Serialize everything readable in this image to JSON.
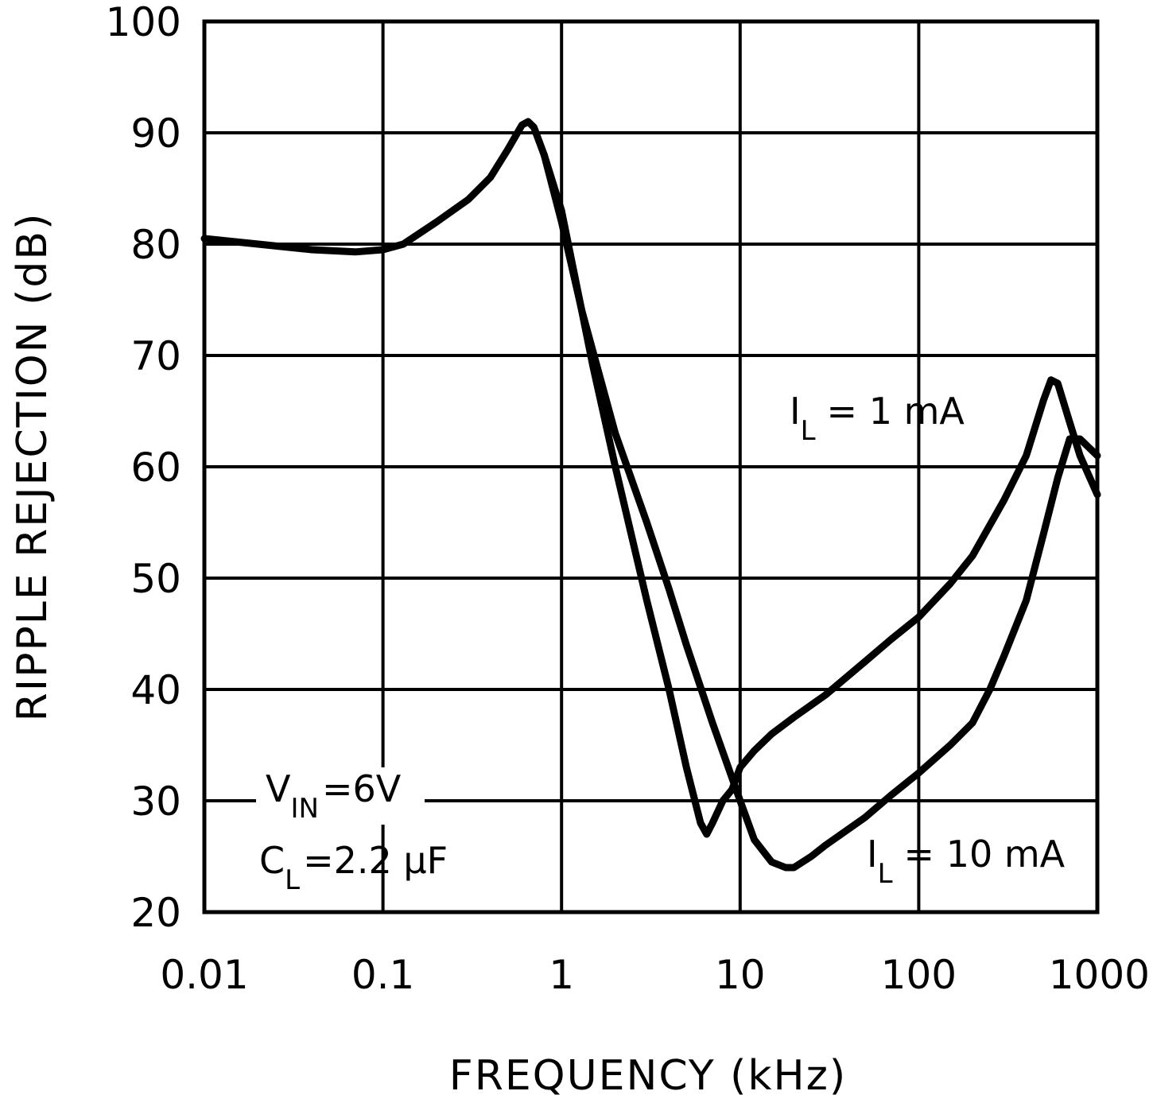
{
  "chart_data": {
    "type": "line",
    "title": "",
    "xlabel": "FREQUENCY (kHz)",
    "ylabel": "RIPPLE REJECTION (dB)",
    "xscale": "log",
    "xlim": [
      0.01,
      1000
    ],
    "ylim": [
      20,
      100
    ],
    "grid": true,
    "x_ticks": [
      {
        "value": 0.01,
        "label": "0.01"
      },
      {
        "value": 0.1,
        "label": "0.1"
      },
      {
        "value": 1,
        "label": "1"
      },
      {
        "value": 10,
        "label": "10"
      },
      {
        "value": 100,
        "label": "100"
      },
      {
        "value": 1000,
        "label": "1000"
      }
    ],
    "y_ticks": [
      {
        "value": 100,
        "label": "100"
      },
      {
        "value": 90,
        "label": "90"
      },
      {
        "value": 80,
        "label": "80"
      },
      {
        "value": 70,
        "label": "70"
      },
      {
        "value": 60,
        "label": "60"
      },
      {
        "value": 50,
        "label": "50"
      },
      {
        "value": 40,
        "label": "40"
      },
      {
        "value": 30,
        "label": "30"
      },
      {
        "value": 20,
        "label": "20"
      }
    ],
    "series": [
      {
        "name": "IL = 1 mA",
        "x": [
          0.01,
          0.02,
          0.04,
          0.07,
          0.1,
          0.13,
          0.2,
          0.3,
          0.4,
          0.5,
          0.6,
          0.65,
          0.7,
          0.8,
          1.0,
          1.5,
          2.0,
          3.0,
          4.0,
          5.0,
          6.0,
          6.5,
          7.0,
          8.0,
          9.0,
          10,
          12,
          15,
          20,
          30,
          50,
          70,
          100,
          150,
          200,
          300,
          400,
          500,
          550,
          600,
          700,
          800,
          1000
        ],
        "y": [
          80.5,
          80,
          79.5,
          79.3,
          79.5,
          80,
          82,
          84,
          86,
          88.5,
          90.7,
          91,
          90.5,
          88,
          83,
          69,
          60,
          48,
          40,
          33,
          28,
          27,
          28,
          30,
          31,
          33,
          34.5,
          36,
          37.5,
          39.5,
          42.5,
          44.5,
          46.5,
          49.5,
          52,
          57,
          61,
          66,
          67.8,
          67.5,
          64,
          61,
          57.5
        ]
      },
      {
        "name": "IL = 10 mA",
        "x": [
          0.8,
          1.0,
          1.3,
          2.0,
          3.0,
          4.0,
          5.0,
          7.0,
          10,
          12,
          15,
          18,
          20,
          25,
          30,
          50,
          70,
          100,
          150,
          200,
          250,
          300,
          400,
          500,
          600,
          700,
          800,
          1000
        ],
        "y": [
          88,
          82,
          74,
          63,
          55,
          49,
          44,
          37,
          30,
          26.5,
          24.5,
          24,
          24,
          25,
          26,
          28.5,
          30.5,
          32.5,
          35,
          37,
          40,
          43,
          48,
          54,
          59,
          62.5,
          62.5,
          61
        ]
      }
    ],
    "annotations": [
      {
        "id": "il1",
        "main": "I",
        "sub": "L",
        "rest": "= 1 mA"
      },
      {
        "id": "il10",
        "main": "I",
        "sub": "L",
        "rest": "= 10 mA"
      },
      {
        "id": "vin",
        "main": "V",
        "sub": "IN",
        "rest": "=6V"
      },
      {
        "id": "cl",
        "main": "C",
        "sub": "L",
        "rest": "=2.2 μF"
      }
    ]
  }
}
